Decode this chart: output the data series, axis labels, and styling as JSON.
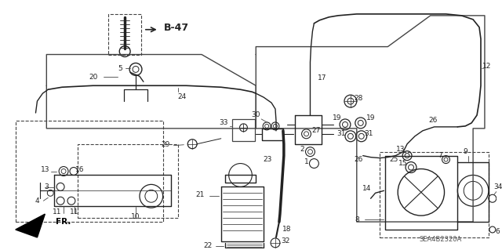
{
  "bg_color": "#ffffff",
  "diagram_code": "SEA4B2320A",
  "fig_width": 6.4,
  "fig_height": 3.19,
  "dpi": 100,
  "lc": "#444444",
  "lc_dark": "#222222"
}
